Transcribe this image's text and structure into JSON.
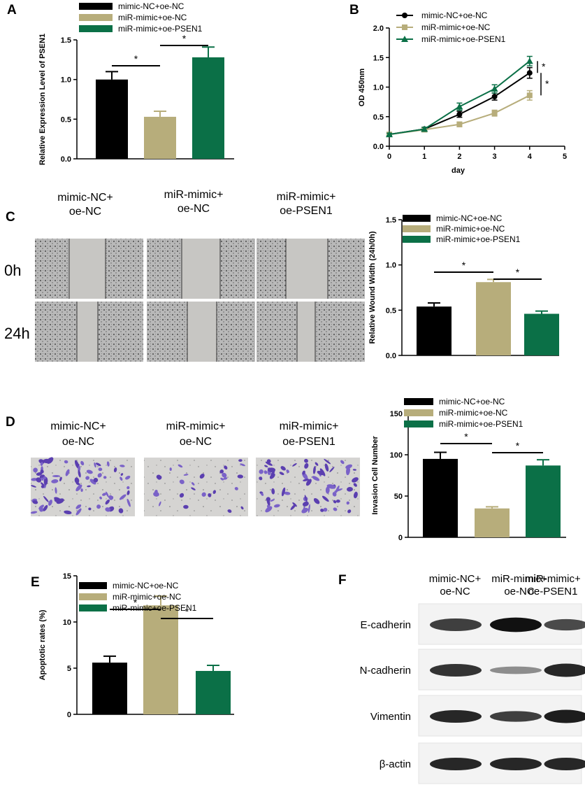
{
  "colors": {
    "black": "#000000",
    "tan": "#b7ad7b",
    "green": "#0b7047"
  },
  "panels": {
    "A": "A",
    "B": "B",
    "C": "C",
    "D": "D",
    "E": "E",
    "F": "F"
  },
  "legend_labels": [
    "mimic-NC+oe-NC",
    "miR-mimic+oe-NC",
    "miR-mimic+oe-PSEN1"
  ],
  "image_groups": [
    {
      "line1": "mimic-NC+",
      "line2": "oe-NC"
    },
    {
      "line1": "miR-mimic+",
      "line2": "oe-NC"
    },
    {
      "line1": "miR-mimic+",
      "line2": "oe-PSEN1"
    }
  ],
  "time_labels": [
    "0h",
    "24h"
  ],
  "blot_labels": [
    "E-cadherin",
    "N-cadherin",
    "Vimentin",
    "β-actin"
  ],
  "significance_mark": "*",
  "chart_data": [
    {
      "panel": "A",
      "type": "bar",
      "ylabel": "Relative Expression Level  of PSEN1",
      "ylim": [
        0,
        1.5
      ],
      "yticks": [
        "0.0",
        "0.5",
        "1.0",
        "1.5"
      ],
      "ytick_values": [
        0,
        0.5,
        1.0,
        1.5
      ],
      "legend": "top-left",
      "series": [
        {
          "name": "mimic-NC+oe-NC",
          "value": 1.0,
          "error": 0.1
        },
        {
          "name": "miR-mimic+oe-NC",
          "value": 0.53,
          "error": 0.07
        },
        {
          "name": "miR-mimic+oe-PSEN1",
          "value": 1.28,
          "error": 0.13
        }
      ]
    },
    {
      "panel": "B",
      "type": "line",
      "xlabel": "day",
      "ylabel": "OD 450nm",
      "xlim": [
        0,
        5
      ],
      "ylim": [
        0,
        2.0
      ],
      "xticks": [
        "0",
        "1",
        "2",
        "3",
        "4",
        "5"
      ],
      "xtick_values": [
        0,
        1,
        2,
        3,
        4,
        5
      ],
      "yticks": [
        "0.0",
        "0.5",
        "1.0",
        "1.5",
        "2.0"
      ],
      "ytick_values": [
        0,
        0.5,
        1.0,
        1.5,
        2.0
      ],
      "legend": "top-left",
      "x": [
        0,
        1,
        2,
        3,
        4
      ],
      "series": [
        {
          "name": "mimic-NC+oe-NC",
          "values": [
            0.2,
            0.29,
            0.54,
            0.84,
            1.24
          ],
          "errors": [
            0.02,
            0.03,
            0.05,
            0.06,
            0.09
          ]
        },
        {
          "name": "miR-mimic+oe-NC",
          "values": [
            0.2,
            0.28,
            0.37,
            0.56,
            0.86
          ],
          "errors": [
            0.02,
            0.03,
            0.04,
            0.05,
            0.08
          ]
        },
        {
          "name": "miR-mimic+oe-PSEN1",
          "values": [
            0.2,
            0.29,
            0.67,
            0.97,
            1.44
          ],
          "errors": [
            0.02,
            0.03,
            0.06,
            0.07,
            0.08
          ]
        }
      ]
    },
    {
      "panel": "C",
      "type": "bar",
      "ylabel": "Relative Wound Width (24h/0h)",
      "ylim": [
        0,
        1.5
      ],
      "yticks": [
        "0.0",
        "0.5",
        "1.0",
        "1.5"
      ],
      "ytick_values": [
        0,
        0.5,
        1.0,
        1.5
      ],
      "legend": "top",
      "series": [
        {
          "name": "mimic-NC+oe-NC",
          "value": 0.54,
          "error": 0.04
        },
        {
          "name": "miR-mimic+oe-NC",
          "value": 0.81,
          "error": 0.03
        },
        {
          "name": "miR-mimic+oe-PSEN1",
          "value": 0.46,
          "error": 0.03
        }
      ]
    },
    {
      "panel": "D",
      "type": "bar",
      "ylabel": "Invasion Cell Number",
      "ylim": [
        0,
        150
      ],
      "yticks": [
        "0",
        "50",
        "100",
        "150"
      ],
      "ytick_values": [
        0,
        50,
        100,
        150
      ],
      "legend": "top",
      "series": [
        {
          "name": "mimic-NC+oe-NC",
          "value": 95,
          "error": 8
        },
        {
          "name": "miR-mimic+oe-NC",
          "value": 35,
          "error": 2
        },
        {
          "name": "miR-mimic+oe-PSEN1",
          "value": 87,
          "error": 7
        }
      ]
    },
    {
      "panel": "E",
      "type": "bar",
      "ylabel": "Apoptotic rates (%)",
      "ylim": [
        0,
        15
      ],
      "yticks": [
        "0",
        "5",
        "10",
        "15"
      ],
      "ytick_values": [
        0,
        5,
        10,
        15
      ],
      "legend": "top",
      "series": [
        {
          "name": "mimic-NC+oe-NC",
          "value": 5.6,
          "error": 0.7
        },
        {
          "name": "miR-mimic+oe-NC",
          "value": 11.8,
          "error": 1.0
        },
        {
          "name": "miR-mimic+oe-PSEN1",
          "value": 4.7,
          "error": 0.6
        }
      ]
    }
  ]
}
